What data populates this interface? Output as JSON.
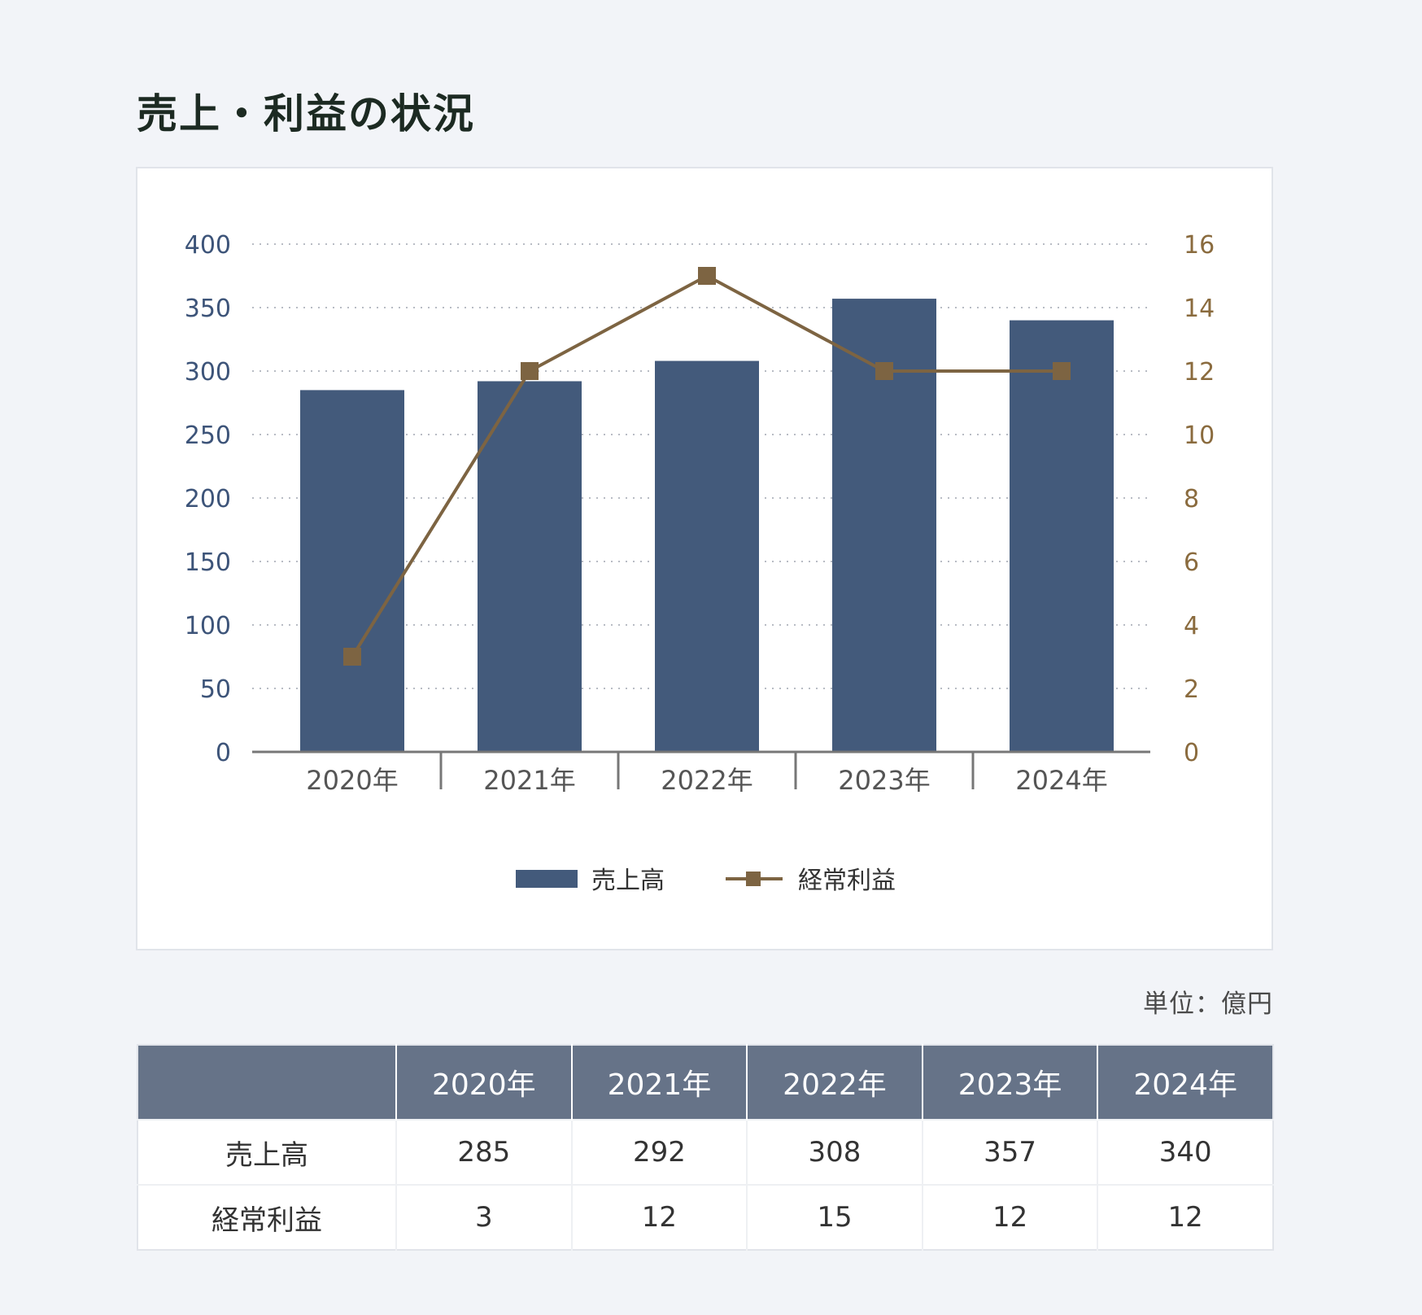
{
  "page": {
    "title": "売上・利益の状況",
    "unit_note": "単位：億円"
  },
  "colors": {
    "bar": "#435a7b",
    "line": "#7d6442",
    "left_axis_text": "#3d5479",
    "right_axis_text": "#8a6b3e",
    "grid": "#b8bcc4",
    "table_header": "#667388"
  },
  "chart_data": {
    "type": "bar",
    "categories": [
      "2020年",
      "2021年",
      "2022年",
      "2023年",
      "2024年"
    ],
    "series": [
      {
        "name": "売上高",
        "type": "bar",
        "axis": "left",
        "values": [
          285,
          292,
          308,
          357,
          340
        ]
      },
      {
        "name": "経常利益",
        "type": "line",
        "axis": "right",
        "marker": "square",
        "values": [
          3,
          12,
          15,
          12,
          12
        ]
      }
    ],
    "y_left": {
      "ylim": [
        0,
        400
      ],
      "ticks": [
        "0",
        "50",
        "100",
        "150",
        "200",
        "250",
        "300",
        "350",
        "400"
      ]
    },
    "y_right": {
      "ylim": [
        0,
        16
      ],
      "ticks": [
        "0",
        "2",
        "4",
        "6",
        "8",
        "10",
        "12",
        "14",
        "16"
      ]
    },
    "grid": "horizontal dotted",
    "legend": "bottom-center"
  },
  "table": {
    "header": [
      "",
      "2020年",
      "2021年",
      "2022年",
      "2023年",
      "2024年"
    ],
    "rows": [
      {
        "label": "売上高",
        "values": [
          "285",
          "292",
          "308",
          "357",
          "340"
        ]
      },
      {
        "label": "経常利益",
        "values": [
          "3",
          "12",
          "15",
          "12",
          "12"
        ]
      }
    ]
  }
}
